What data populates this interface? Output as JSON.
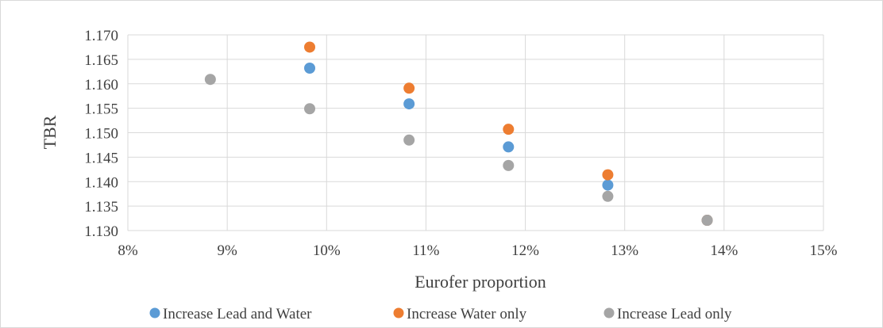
{
  "chart_data": {
    "type": "scatter",
    "title": "",
    "xlabel": "Eurofer proportion",
    "ylabel": "TBR",
    "xlim": [
      0.08,
      0.15
    ],
    "ylim": [
      1.13,
      1.17
    ],
    "x_ticks": [
      "8%",
      "9%",
      "10%",
      "11%",
      "12%",
      "13%",
      "14%",
      "15%"
    ],
    "y_ticks": [
      "1.130",
      "1.135",
      "1.140",
      "1.145",
      "1.150",
      "1.155",
      "1.160",
      "1.165",
      "1.170"
    ],
    "grid": true,
    "legend_position": "bottom",
    "series": [
      {
        "name": "Increase Lead and Water",
        "color": "#5b9bd5",
        "points": [
          [
            0.0983,
            1.1632
          ],
          [
            0.1083,
            1.1559
          ],
          [
            0.1183,
            1.1471
          ],
          [
            0.1283,
            1.1393
          ],
          [
            0.1383,
            1.1321
          ]
        ]
      },
      {
        "name": "Increase Water only",
        "color": "#ed7d31",
        "points": [
          [
            0.0983,
            1.1675
          ],
          [
            0.1083,
            1.1591
          ],
          [
            0.1183,
            1.1507
          ],
          [
            0.1283,
            1.1414
          ],
          [
            0.1383,
            1.1321
          ]
        ]
      },
      {
        "name": "Increase Lead only",
        "color": "#a5a5a5",
        "points": [
          [
            0.0883,
            1.1609
          ],
          [
            0.0983,
            1.1549
          ],
          [
            0.1083,
            1.1485
          ],
          [
            0.1183,
            1.1433
          ],
          [
            0.1283,
            1.137
          ],
          [
            0.1383,
            1.1321
          ]
        ]
      }
    ]
  }
}
